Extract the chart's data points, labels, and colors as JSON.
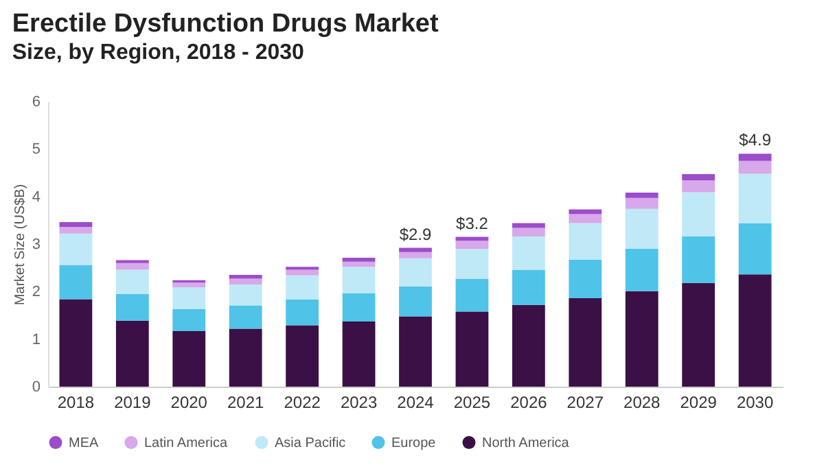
{
  "chart_data": {
    "type": "bar",
    "title": "Erectile Dysfunction Drugs Market",
    "subtitle": "Size, by Region, 2018 - 2030",
    "ylabel": "Market Size (US$B)",
    "categories": [
      "2018",
      "2019",
      "2020",
      "2021",
      "2022",
      "2023",
      "2024",
      "2025",
      "2026",
      "2027",
      "2028",
      "2029",
      "2030"
    ],
    "stacked": true,
    "ylim": [
      0,
      6
    ],
    "yticks": [
      0,
      1,
      2,
      3,
      4,
      5,
      6
    ],
    "legend": "bottom",
    "series": [
      {
        "name": "North America",
        "color": "#3a1046",
        "values": [
          1.84,
          1.39,
          1.17,
          1.22,
          1.29,
          1.37,
          1.48,
          1.58,
          1.72,
          1.86,
          2.01,
          2.18,
          2.36
        ]
      },
      {
        "name": "Europe",
        "color": "#4fc3e8",
        "values": [
          0.72,
          0.56,
          0.46,
          0.49,
          0.54,
          0.59,
          0.63,
          0.69,
          0.74,
          0.81,
          0.89,
          0.98,
          1.08
        ]
      },
      {
        "name": "Asia Pacific",
        "color": "#bfe9f7",
        "values": [
          0.66,
          0.51,
          0.46,
          0.44,
          0.51,
          0.56,
          0.59,
          0.63,
          0.7,
          0.77,
          0.84,
          0.93,
          1.04
        ]
      },
      {
        "name": "Latin America",
        "color": "#d7a8ea",
        "values": [
          0.14,
          0.14,
          0.1,
          0.12,
          0.12,
          0.11,
          0.13,
          0.17,
          0.18,
          0.19,
          0.23,
          0.25,
          0.27
        ]
      },
      {
        "name": "MEA",
        "color": "#9b4dca",
        "values": [
          0.1,
          0.06,
          0.05,
          0.08,
          0.06,
          0.08,
          0.09,
          0.08,
          0.1,
          0.1,
          0.11,
          0.13,
          0.15
        ]
      }
    ],
    "totals": [
      null,
      null,
      null,
      null,
      null,
      null,
      "$2.9",
      "$3.2",
      null,
      null,
      null,
      null,
      "$4.9"
    ]
  }
}
